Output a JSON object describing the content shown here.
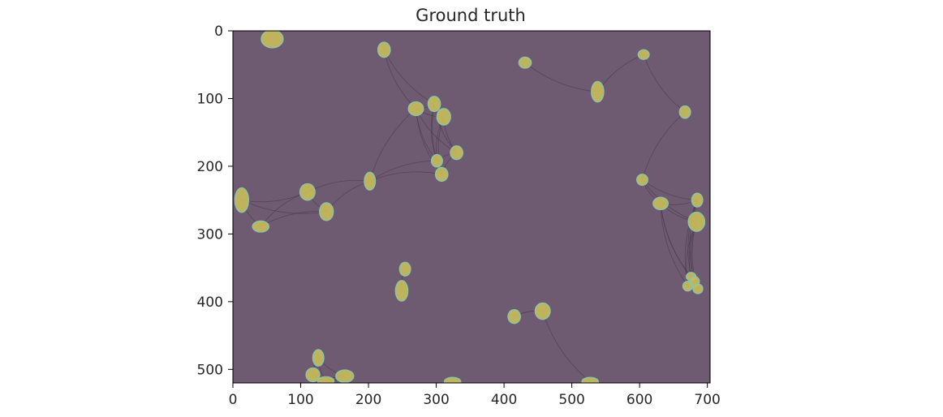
{
  "chart_data": {
    "type": "heatmap",
    "title": "Ground truth",
    "xlabel": "",
    "ylabel": "",
    "xlim": [
      0,
      704
    ],
    "ylim": [
      520,
      0
    ],
    "x_ticks": [
      0,
      100,
      200,
      300,
      400,
      500,
      600,
      700
    ],
    "y_ticks": [
      0,
      100,
      200,
      300,
      400,
      500
    ],
    "grid": false,
    "colors": {
      "background": "#6e5a71",
      "cell": "#c8bd5a",
      "cell_edge": "#8fc4a0",
      "neurite": "#3f3445"
    },
    "cells": [
      {
        "x": 58,
        "y": 12,
        "rx": 16,
        "ry": 13
      },
      {
        "x": 223,
        "y": 28,
        "rx": 9,
        "ry": 11
      },
      {
        "x": 431,
        "y": 47,
        "rx": 9,
        "ry": 8
      },
      {
        "x": 606,
        "y": 35,
        "rx": 8,
        "ry": 7
      },
      {
        "x": 538,
        "y": 90,
        "rx": 9,
        "ry": 15
      },
      {
        "x": 270,
        "y": 115,
        "rx": 11,
        "ry": 10
      },
      {
        "x": 297,
        "y": 108,
        "rx": 9,
        "ry": 11
      },
      {
        "x": 311,
        "y": 127,
        "rx": 10,
        "ry": 12
      },
      {
        "x": 667,
        "y": 120,
        "rx": 8,
        "ry": 9
      },
      {
        "x": 330,
        "y": 180,
        "rx": 9,
        "ry": 10
      },
      {
        "x": 301,
        "y": 192,
        "rx": 8,
        "ry": 9
      },
      {
        "x": 308,
        "y": 212,
        "rx": 9,
        "ry": 10
      },
      {
        "x": 604,
        "y": 220,
        "rx": 8,
        "ry": 8
      },
      {
        "x": 202,
        "y": 222,
        "rx": 8,
        "ry": 13
      },
      {
        "x": 13,
        "y": 250,
        "rx": 10,
        "ry": 18
      },
      {
        "x": 110,
        "y": 238,
        "rx": 11,
        "ry": 12
      },
      {
        "x": 138,
        "y": 267,
        "rx": 10,
        "ry": 13
      },
      {
        "x": 631,
        "y": 255,
        "rx": 11,
        "ry": 9
      },
      {
        "x": 685,
        "y": 250,
        "rx": 8,
        "ry": 10
      },
      {
        "x": 684,
        "y": 282,
        "rx": 12,
        "ry": 14
      },
      {
        "x": 41,
        "y": 289,
        "rx": 12,
        "ry": 8
      },
      {
        "x": 254,
        "y": 352,
        "rx": 8,
        "ry": 10
      },
      {
        "x": 249,
        "y": 384,
        "rx": 9,
        "ry": 15
      },
      {
        "x": 676,
        "y": 363,
        "rx": 7,
        "ry": 6
      },
      {
        "x": 671,
        "y": 377,
        "rx": 7,
        "ry": 7
      },
      {
        "x": 681,
        "y": 370,
        "rx": 7,
        "ry": 7
      },
      {
        "x": 686,
        "y": 381,
        "rx": 7,
        "ry": 7
      },
      {
        "x": 457,
        "y": 414,
        "rx": 11,
        "ry": 12
      },
      {
        "x": 415,
        "y": 422,
        "rx": 9,
        "ry": 10
      },
      {
        "x": 126,
        "y": 483,
        "rx": 8,
        "ry": 12
      },
      {
        "x": 118,
        "y": 508,
        "rx": 10,
        "ry": 10
      },
      {
        "x": 137,
        "y": 517,
        "rx": 12,
        "ry": 6
      },
      {
        "x": 165,
        "y": 510,
        "rx": 13,
        "ry": 9
      },
      {
        "x": 324,
        "y": 518,
        "rx": 12,
        "ry": 6
      },
      {
        "x": 527,
        "y": 518,
        "rx": 12,
        "ry": 6
      }
    ]
  }
}
